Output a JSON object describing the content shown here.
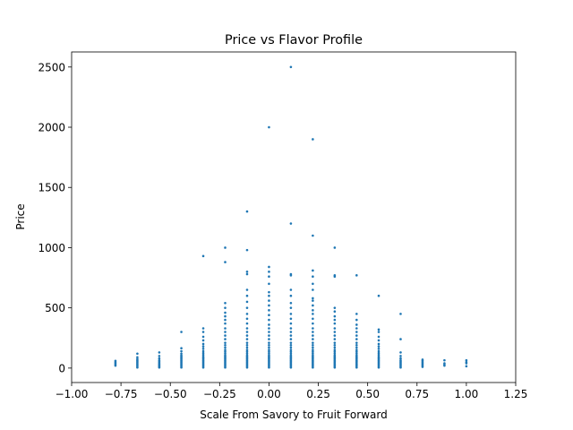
{
  "chart_data": {
    "type": "scatter",
    "title": "Price vs Flavor Profile",
    "xlabel": "Scale From Savory to Fruit Forward",
    "ylabel": "Price",
    "xlim": [
      -1.0,
      1.25
    ],
    "ylim": [
      -120,
      2625
    ],
    "xticks": [
      -1.0,
      -0.75,
      -0.5,
      -0.25,
      0.0,
      0.25,
      0.5,
      0.75,
      1.0,
      1.25
    ],
    "xtick_labels": [
      "−1.00",
      "−0.75",
      "−0.50",
      "−0.25",
      "0.00",
      "0.25",
      "0.50",
      "0.75",
      "1.00",
      "1.25"
    ],
    "yticks": [
      0,
      500,
      1000,
      1500,
      2000,
      2500
    ],
    "ytick_labels": [
      "0",
      "500",
      "1000",
      "1500",
      "2000",
      "2500"
    ],
    "grid": false,
    "marker_color": "#1f77b4",
    "columns": [
      {
        "x": -0.778,
        "y": [
          20,
          30,
          40,
          50,
          60
        ]
      },
      {
        "x": -0.667,
        "y": [
          5,
          15,
          25,
          35,
          45,
          55,
          65,
          75,
          90,
          120
        ]
      },
      {
        "x": -0.556,
        "y": [
          5,
          12,
          20,
          28,
          36,
          45,
          55,
          65,
          80,
          100,
          130
        ]
      },
      {
        "x": -0.444,
        "y": [
          5,
          15,
          25,
          35,
          45,
          55,
          65,
          75,
          85,
          95,
          105,
          120,
          140,
          165,
          300
        ]
      },
      {
        "x": -0.333,
        "y": [
          5,
          15,
          25,
          35,
          45,
          55,
          65,
          75,
          85,
          95,
          110,
          125,
          140,
          160,
          180,
          200,
          230,
          260,
          300,
          330,
          930
        ]
      },
      {
        "x": -0.222,
        "y": [
          5,
          15,
          25,
          35,
          45,
          55,
          65,
          75,
          85,
          95,
          105,
          120,
          135,
          150,
          170,
          190,
          210,
          240,
          270,
          300,
          330,
          370,
          400,
          430,
          460,
          500,
          540,
          880,
          1000
        ]
      },
      {
        "x": -0.111,
        "y": [
          5,
          15,
          25,
          35,
          45,
          55,
          65,
          75,
          85,
          95,
          105,
          120,
          135,
          150,
          170,
          190,
          210,
          240,
          270,
          300,
          330,
          370,
          410,
          450,
          500,
          550,
          600,
          650,
          780,
          800,
          980,
          1300
        ]
      },
      {
        "x": 0.0,
        "y": [
          5,
          15,
          25,
          35,
          45,
          55,
          65,
          75,
          85,
          95,
          105,
          120,
          135,
          150,
          170,
          190,
          210,
          240,
          270,
          300,
          330,
          360,
          400,
          440,
          480,
          520,
          560,
          600,
          630,
          700,
          760,
          800,
          840,
          2000
        ]
      },
      {
        "x": 0.111,
        "y": [
          5,
          15,
          25,
          35,
          45,
          55,
          65,
          75,
          85,
          95,
          105,
          120,
          135,
          150,
          170,
          190,
          210,
          240,
          270,
          300,
          330,
          370,
          410,
          450,
          500,
          540,
          600,
          650,
          770,
          780,
          1200,
          2500
        ]
      },
      {
        "x": 0.222,
        "y": [
          5,
          15,
          25,
          35,
          45,
          55,
          65,
          75,
          85,
          95,
          105,
          120,
          135,
          150,
          170,
          190,
          210,
          240,
          270,
          300,
          330,
          370,
          410,
          450,
          480,
          520,
          560,
          580,
          650,
          700,
          760,
          810,
          1100,
          1900
        ]
      },
      {
        "x": 0.333,
        "y": [
          5,
          15,
          25,
          35,
          45,
          55,
          65,
          75,
          85,
          95,
          105,
          120,
          135,
          150,
          170,
          190,
          210,
          240,
          270,
          300,
          330,
          370,
          400,
          430,
          470,
          500,
          760,
          770,
          1000
        ]
      },
      {
        "x": 0.444,
        "y": [
          5,
          15,
          25,
          35,
          45,
          55,
          65,
          75,
          85,
          95,
          105,
          120,
          135,
          150,
          170,
          190,
          210,
          240,
          270,
          300,
          330,
          360,
          400,
          450,
          770
        ]
      },
      {
        "x": 0.556,
        "y": [
          5,
          15,
          25,
          35,
          45,
          55,
          65,
          75,
          85,
          95,
          110,
          125,
          140,
          160,
          180,
          200,
          230,
          260,
          300,
          320,
          600
        ]
      },
      {
        "x": 0.667,
        "y": [
          5,
          15,
          25,
          35,
          45,
          55,
          65,
          80,
          100,
          130,
          240,
          450
        ]
      },
      {
        "x": 0.778,
        "y": [
          10,
          20,
          30,
          40,
          50,
          60,
          70
        ]
      },
      {
        "x": 0.889,
        "y": [
          20,
          30,
          40,
          65
        ]
      },
      {
        "x": 1.0,
        "y": [
          15,
          40,
          50,
          65
        ]
      }
    ]
  }
}
